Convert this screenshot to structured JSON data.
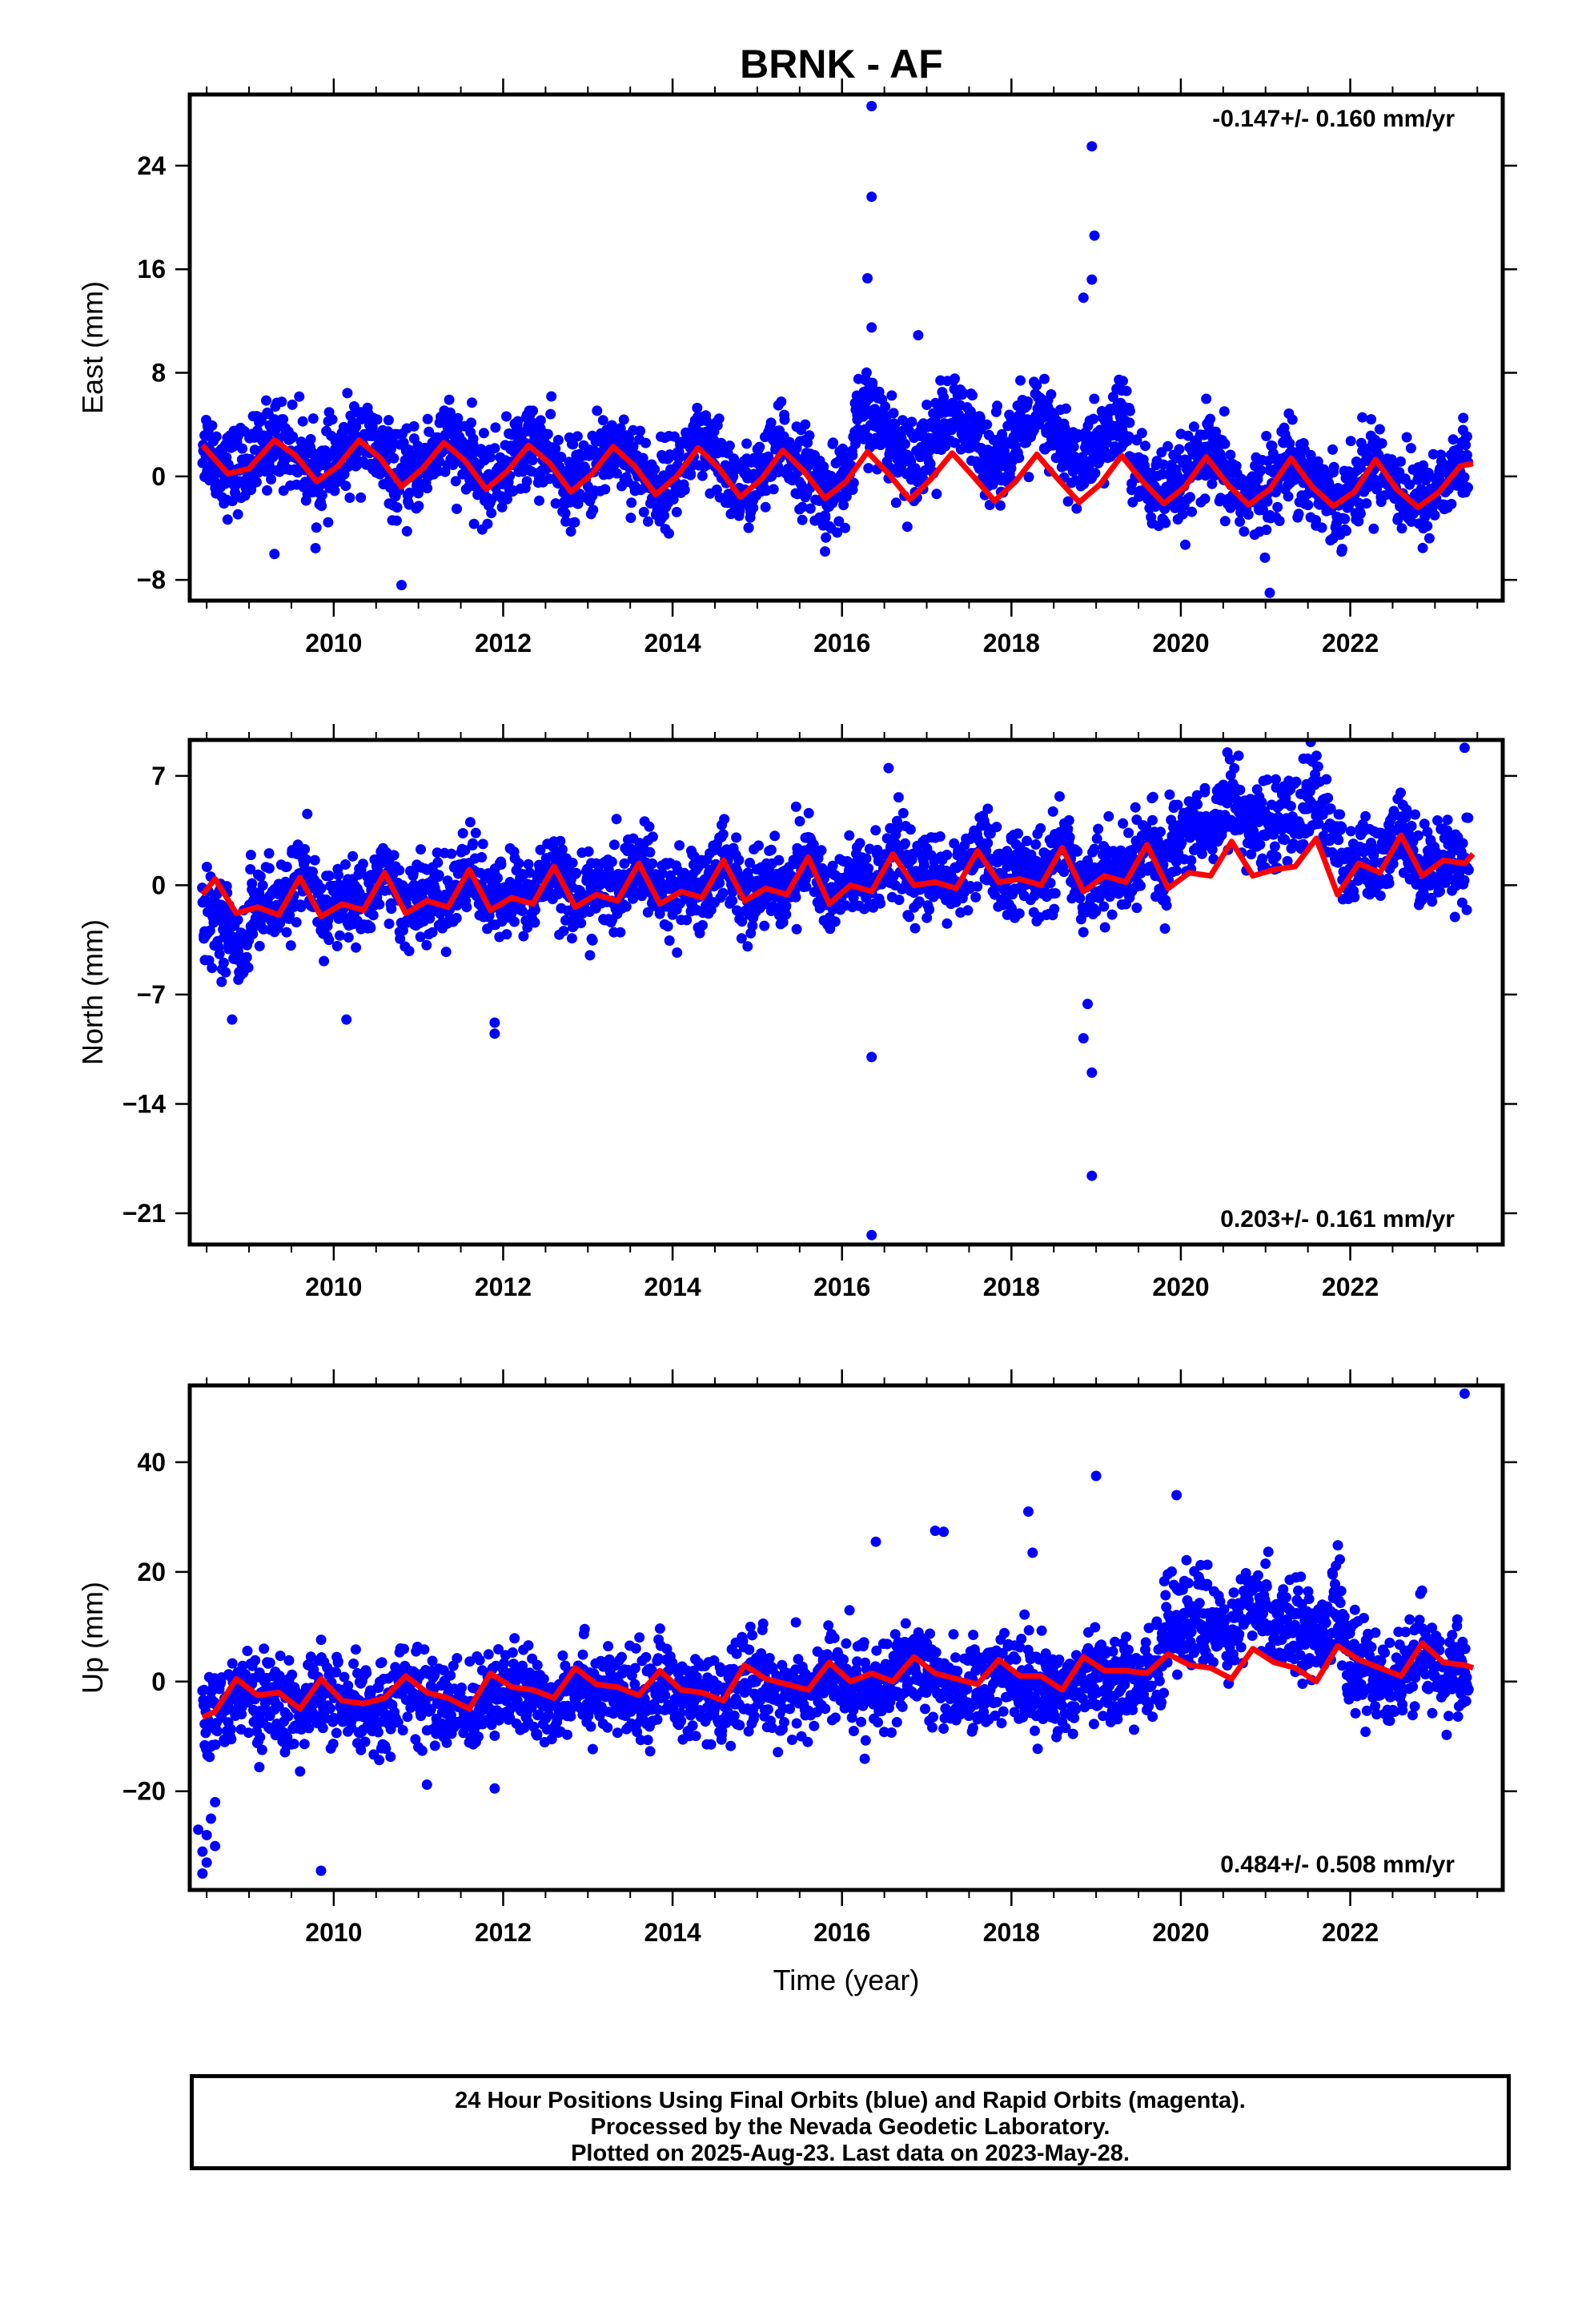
{
  "title": "BRNK - AF",
  "chart_data": [
    {
      "type": "scatter",
      "name": "east",
      "ylabel": "East (mm)",
      "xlabel": "",
      "rate_text": "-0.147+/- 0.160 mm/yr",
      "rate_position": "top-right",
      "xlim": [
        2008.3,
        2023.8
      ],
      "ylim": [
        -9.6,
        29.5
      ],
      "xticks": [
        2010,
        2012,
        2014,
        2016,
        2018,
        2020,
        2022
      ],
      "xtick_labels": [
        "2010",
        "2012",
        "2014",
        "2016",
        "2018",
        "2020",
        "2022"
      ],
      "yticks": [
        -8,
        0,
        8,
        16,
        24
      ],
      "ytick_labels": [
        "−8",
        "0",
        "8",
        "16",
        "24"
      ],
      "colors": {
        "points": "#0000ff",
        "model": "#ff0000"
      },
      "model": {
        "x": [
          2008.45,
          2008.75,
          2009.0,
          2009.3,
          2009.55,
          2009.8,
          2010.05,
          2010.3,
          2010.55,
          2010.8,
          2011.05,
          2011.3,
          2011.55,
          2011.8,
          2012.05,
          2012.3,
          2012.55,
          2012.8,
          2013.05,
          2013.3,
          2013.55,
          2013.8,
          2014.05,
          2014.3,
          2014.55,
          2014.8,
          2015.05,
          2015.3,
          2015.55,
          2015.8,
          2016.05,
          2016.3,
          2016.55,
          2016.8,
          2017.05,
          2017.3,
          2017.55,
          2017.8,
          2018.05,
          2018.3,
          2018.55,
          2018.8,
          2019.05,
          2019.3,
          2019.55,
          2019.8,
          2020.05,
          2020.3,
          2020.55,
          2020.8,
          2021.05,
          2021.3,
          2021.55,
          2021.8,
          2022.05,
          2022.3,
          2022.55,
          2022.8,
          2023.05,
          2023.3,
          2023.45
        ],
        "y": [
          2.4,
          0.2,
          0.6,
          2.8,
          1.6,
          -0.4,
          0.8,
          2.8,
          1.4,
          -0.8,
          0.6,
          2.6,
          1.2,
          -1.0,
          0.4,
          2.4,
          1.0,
          -1.2,
          0.2,
          2.3,
          0.8,
          -1.4,
          0.0,
          2.2,
          0.6,
          -1.6,
          -0.2,
          2.0,
          0.4,
          -1.7,
          -0.4,
          1.9,
          0.2,
          -1.8,
          -0.2,
          1.8,
          0.0,
          -1.9,
          -0.4,
          1.7,
          -0.2,
          -2.0,
          -0.6,
          1.6,
          -0.4,
          -2.1,
          -0.8,
          1.5,
          -0.6,
          -2.2,
          -1.0,
          1.4,
          -0.8,
          -2.3,
          -1.2,
          1.3,
          -1.0,
          -2.4,
          -1.2,
          0.8,
          1.0
        ]
      },
      "outliers": [
        {
          "x": 2016.35,
          "y": 28.6
        },
        {
          "x": 2016.35,
          "y": 21.6
        },
        {
          "x": 2016.3,
          "y": 15.3
        },
        {
          "x": 2016.35,
          "y": 11.5
        },
        {
          "x": 2016.9,
          "y": 10.9
        },
        {
          "x": 2018.95,
          "y": 25.5
        },
        {
          "x": 2018.98,
          "y": 18.6
        },
        {
          "x": 2018.95,
          "y": 15.2
        },
        {
          "x": 2018.85,
          "y": 13.8
        },
        {
          "x": 2021.05,
          "y": -9.0
        },
        {
          "x": 2010.8,
          "y": -8.4
        },
        {
          "x": 2009.3,
          "y": -6.0
        },
        {
          "x": 2015.8,
          "y": -5.8
        }
      ]
    },
    {
      "type": "scatter",
      "name": "north",
      "ylabel": "North (mm)",
      "xlabel": "",
      "rate_text": "0.203+/- 0.161 mm/yr",
      "rate_position": "bottom-right",
      "xlim": [
        2008.3,
        2023.8
      ],
      "ylim": [
        -23.0,
        9.3
      ],
      "xticks": [
        2010,
        2012,
        2014,
        2016,
        2018,
        2020,
        2022
      ],
      "xtick_labels": [
        "2010",
        "2012",
        "2014",
        "2016",
        "2018",
        "2020",
        "2022"
      ],
      "yticks": [
        -21,
        -14,
        -7,
        0,
        7
      ],
      "ytick_labels": [
        "−21",
        "−14",
        "−7",
        "0",
        "7"
      ],
      "colors": {
        "points": "#0000ff",
        "model": "#ff0000"
      },
      "model": {
        "x": [
          2008.45,
          2008.6,
          2008.85,
          2009.1,
          2009.35,
          2009.6,
          2009.85,
          2010.1,
          2010.35,
          2010.6,
          2010.85,
          2011.1,
          2011.35,
          2011.6,
          2011.85,
          2012.1,
          2012.35,
          2012.6,
          2012.85,
          2013.1,
          2013.35,
          2013.6,
          2013.85,
          2014.1,
          2014.35,
          2014.6,
          2014.85,
          2015.1,
          2015.35,
          2015.6,
          2015.85,
          2016.1,
          2016.35,
          2016.6,
          2016.85,
          2017.1,
          2017.35,
          2017.6,
          2017.85,
          2018.1,
          2018.35,
          2018.6,
          2018.85,
          2019.1,
          2019.35,
          2019.6,
          2019.85,
          2020.1,
          2020.35,
          2020.6,
          2020.85,
          2021.1,
          2021.35,
          2021.6,
          2021.85,
          2022.1,
          2022.35,
          2022.6,
          2022.85,
          2023.1,
          2023.35,
          2023.45
        ],
        "y": [
          -0.6,
          0.4,
          -1.8,
          -1.4,
          -1.9,
          0.5,
          -2.0,
          -1.2,
          -1.6,
          0.8,
          -1.8,
          -1.0,
          -1.4,
          1.0,
          -1.6,
          -0.8,
          -1.2,
          1.2,
          -1.4,
          -0.6,
          -1.0,
          1.4,
          -1.2,
          -0.4,
          -0.8,
          1.6,
          -1.0,
          -0.2,
          -0.6,
          1.8,
          -1.2,
          0.0,
          -0.4,
          2.0,
          0.0,
          0.2,
          -0.2,
          2.2,
          0.2,
          0.4,
          0.0,
          2.4,
          -0.4,
          0.6,
          0.2,
          2.6,
          -0.2,
          0.8,
          0.6,
          2.8,
          0.6,
          1.0,
          1.2,
          3.0,
          -0.6,
          1.4,
          0.8,
          3.2,
          0.6,
          1.6,
          1.4,
          2.0
        ]
      },
      "outliers": [
        {
          "x": 2016.35,
          "y": -22.4
        },
        {
          "x": 2016.35,
          "y": -11.0
        },
        {
          "x": 2018.95,
          "y": -18.6
        },
        {
          "x": 2018.95,
          "y": -12.0
        },
        {
          "x": 2018.85,
          "y": -9.8
        },
        {
          "x": 2018.9,
          "y": -7.6
        },
        {
          "x": 2008.8,
          "y": -8.6
        },
        {
          "x": 2010.15,
          "y": -8.6
        },
        {
          "x": 2011.9,
          "y": -9.5
        },
        {
          "x": 2011.9,
          "y": -8.8
        },
        {
          "x": 2016.55,
          "y": 7.5
        },
        {
          "x": 2023.35,
          "y": 8.8
        },
        {
          "x": 2020.55,
          "y": 8.5
        },
        {
          "x": 2021.5,
          "y": 8.1
        }
      ]
    },
    {
      "type": "scatter",
      "name": "up",
      "ylabel": "Up (mm)",
      "xlabel": "Time (year)",
      "rate_text": "0.484+/- 0.508 mm/yr",
      "rate_position": "bottom-right",
      "xlim": [
        2008.3,
        2023.8
      ],
      "ylim": [
        -38.0,
        54.0
      ],
      "xticks": [
        2010,
        2012,
        2014,
        2016,
        2018,
        2020,
        2022
      ],
      "xtick_labels": [
        "2010",
        "2012",
        "2014",
        "2016",
        "2018",
        "2020",
        "2022"
      ],
      "yticks": [
        -20,
        0,
        20,
        40
      ],
      "ytick_labels": [
        "−20",
        "0",
        "20",
        "40"
      ],
      "colors": {
        "points": "#0000ff",
        "model": "#ff0000"
      },
      "model": {
        "x": [
          2008.45,
          2008.6,
          2008.85,
          2009.1,
          2009.35,
          2009.6,
          2009.85,
          2010.1,
          2010.35,
          2010.6,
          2010.85,
          2011.1,
          2011.35,
          2011.6,
          2011.85,
          2012.1,
          2012.35,
          2012.6,
          2012.85,
          2013.1,
          2013.35,
          2013.6,
          2013.85,
          2014.1,
          2014.35,
          2014.6,
          2014.85,
          2015.1,
          2015.35,
          2015.6,
          2015.85,
          2016.1,
          2016.35,
          2016.6,
          2016.85,
          2017.1,
          2017.35,
          2017.6,
          2017.85,
          2018.1,
          2018.35,
          2018.6,
          2018.85,
          2019.1,
          2019.35,
          2019.6,
          2019.85,
          2020.1,
          2020.35,
          2020.6,
          2020.85,
          2021.1,
          2021.35,
          2021.6,
          2021.85,
          2022.1,
          2022.35,
          2022.6,
          2022.85,
          2023.1,
          2023.35,
          2023.45
        ],
        "y": [
          -6.5,
          -5.5,
          0.5,
          -2.5,
          -2.0,
          -5.0,
          0.5,
          -3.5,
          -4.0,
          -3.0,
          1.0,
          -2.0,
          -3.0,
          -5.0,
          1.5,
          -1.0,
          -1.5,
          -3.0,
          2.5,
          -0.5,
          -1.0,
          -2.5,
          2.0,
          -1.5,
          -2.0,
          -3.5,
          3.0,
          0.5,
          -0.5,
          -1.5,
          3.5,
          0.0,
          1.5,
          0.0,
          4.5,
          1.5,
          0.5,
          -0.5,
          4.0,
          1.0,
          1.0,
          -1.5,
          4.5,
          2.0,
          2.0,
          1.5,
          5.0,
          3.0,
          2.5,
          0.5,
          6.0,
          3.5,
          2.5,
          0.0,
          6.5,
          4.0,
          2.5,
          1.0,
          7.0,
          3.5,
          3.0,
          2.5
        ]
      },
      "outliers": [
        {
          "x": 2008.45,
          "y": -35.0
        },
        {
          "x": 2008.45,
          "y": -31.0
        },
        {
          "x": 2008.5,
          "y": -28.0
        },
        {
          "x": 2008.55,
          "y": -25.0
        },
        {
          "x": 2008.6,
          "y": -22.0
        },
        {
          "x": 2008.5,
          "y": -33.0
        },
        {
          "x": 2008.6,
          "y": -30.0
        },
        {
          "x": 2008.4,
          "y": -27.0
        },
        {
          "x": 2009.85,
          "y": -34.5
        },
        {
          "x": 2016.4,
          "y": 25.5
        },
        {
          "x": 2017.1,
          "y": 27.5
        },
        {
          "x": 2017.2,
          "y": 27.3
        },
        {
          "x": 2018.2,
          "y": 31.0
        },
        {
          "x": 2018.25,
          "y": 23.5
        },
        {
          "x": 2019.0,
          "y": 37.5
        },
        {
          "x": 2019.95,
          "y": 34.0
        },
        {
          "x": 2023.35,
          "y": 52.5
        },
        {
          "x": 2011.9,
          "y": -19.5
        },
        {
          "x": 2011.1,
          "y": -18.8
        }
      ]
    }
  ],
  "caption": {
    "line1": "24 Hour Positions Using Final Orbits (blue) and Rapid Orbits (magenta).",
    "line2": "Processed by the Nevada Geodetic Laboratory.",
    "line3": "Plotted on 2025-Aug-23. Last data on 2023-May-28."
  }
}
